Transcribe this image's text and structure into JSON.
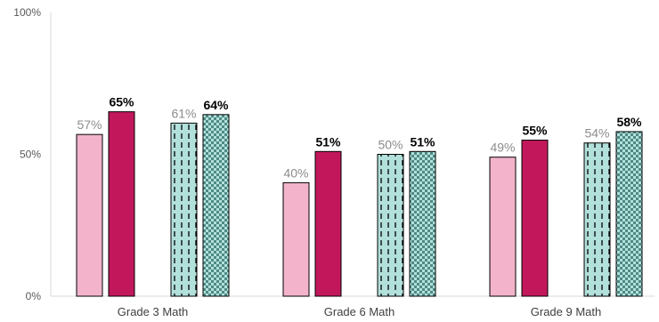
{
  "chart_data": {
    "type": "bar",
    "title": "",
    "xlabel": "",
    "ylabel": "",
    "ylim": [
      0,
      100
    ],
    "yticks": [
      0,
      50,
      100
    ],
    "ytick_labels": [
      "0%",
      "50%",
      "100%"
    ],
    "grid": false,
    "legend": "none",
    "categories": [
      "Grade 3 Math",
      "Grade 6 Math",
      "Grade 9 Math"
    ],
    "series": [
      {
        "values": [
          57,
          40,
          49
        ],
        "labels": [
          "57%",
          "40%",
          "49%"
        ],
        "color": "#f2b3cb",
        "pattern": "solid",
        "label_style": "light"
      },
      {
        "values": [
          65,
          51,
          55
        ],
        "labels": [
          "65%",
          "51%",
          "55%"
        ],
        "color": "#c2185b",
        "pattern": "solid",
        "label_style": "bold"
      },
      {
        "values": [
          61,
          50,
          54
        ],
        "labels": [
          "61%",
          "50%",
          "54%"
        ],
        "color": "#b2e0db",
        "pattern": "dashed-vertical",
        "label_style": "light"
      },
      {
        "values": [
          64,
          51,
          58
        ],
        "labels": [
          "64%",
          "51%",
          "58%"
        ],
        "color": "#5f9e98",
        "pattern": "checker",
        "label_style": "bold"
      }
    ]
  }
}
